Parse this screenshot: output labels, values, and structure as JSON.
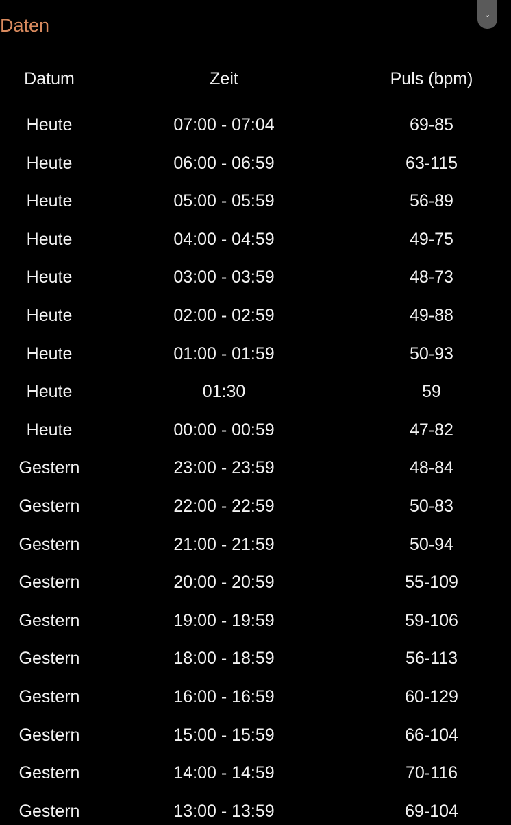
{
  "section_title": "Daten",
  "scroll_icon": "chevron-down-icon",
  "colors": {
    "accent": "#d98a5e",
    "background": "#000000",
    "text": "#f2f2f2"
  },
  "table": {
    "headers": [
      "Datum",
      "Zeit",
      "Puls (bpm)"
    ],
    "rows": [
      [
        "Heute",
        "07:00 - 07:04",
        "69-85"
      ],
      [
        "Heute",
        "06:00 - 06:59",
        "63-115"
      ],
      [
        "Heute",
        "05:00 - 05:59",
        "56-89"
      ],
      [
        "Heute",
        "04:00 - 04:59",
        "49-75"
      ],
      [
        "Heute",
        "03:00 - 03:59",
        "48-73"
      ],
      [
        "Heute",
        "02:00 - 02:59",
        "49-88"
      ],
      [
        "Heute",
        "01:00 - 01:59",
        "50-93"
      ],
      [
        "Heute",
        "01:30",
        "59"
      ],
      [
        "Heute",
        "00:00 - 00:59",
        "47-82"
      ],
      [
        "Gestern",
        "23:00 - 23:59",
        "48-84"
      ],
      [
        "Gestern",
        "22:00 - 22:59",
        "50-83"
      ],
      [
        "Gestern",
        "21:00 - 21:59",
        "50-94"
      ],
      [
        "Gestern",
        "20:00 - 20:59",
        "55-109"
      ],
      [
        "Gestern",
        "19:00 - 19:59",
        "59-106"
      ],
      [
        "Gestern",
        "18:00 - 18:59",
        "56-113"
      ],
      [
        "Gestern",
        "16:00 - 16:59",
        "60-129"
      ],
      [
        "Gestern",
        "15:00 - 15:59",
        "66-104"
      ],
      [
        "Gestern",
        "14:00 - 14:59",
        "70-116"
      ],
      [
        "Gestern",
        "13:00 - 13:59",
        "69-104"
      ]
    ]
  }
}
